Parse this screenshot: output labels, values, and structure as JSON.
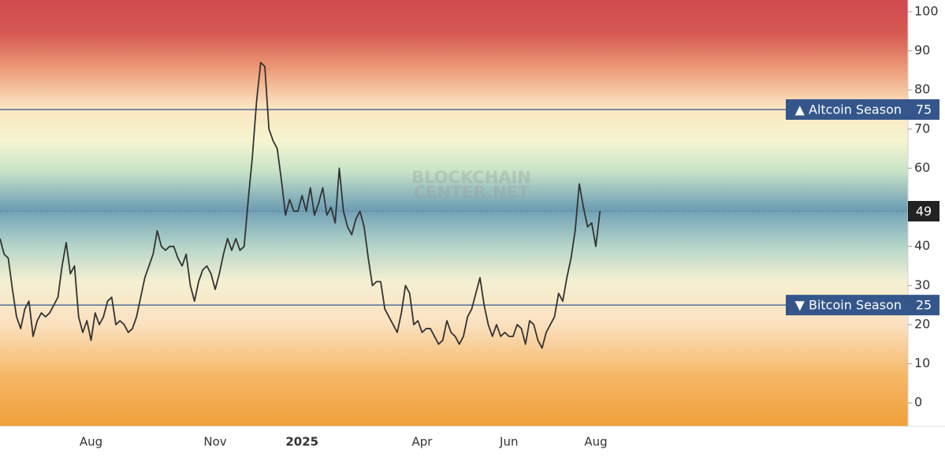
{
  "chart_data": {
    "type": "line",
    "watermark": [
      "BLOCKCHAIN",
      "CENTER.NET"
    ],
    "categories": [
      null,
      null,
      null,
      null,
      null,
      null,
      null,
      null,
      null,
      null,
      null,
      null,
      null,
      null,
      null,
      null,
      null,
      null,
      null,
      null,
      null,
      null,
      "Aug",
      null,
      null,
      null,
      null,
      null,
      null,
      null,
      null,
      null,
      null,
      null,
      null,
      null,
      null,
      null,
      null,
      null,
      null,
      null,
      null,
      null,
      null,
      null,
      null,
      null,
      null,
      null,
      null,
      null,
      "Nov",
      null,
      null,
      null,
      null,
      null,
      null,
      null,
      null,
      null,
      null,
      null,
      null,
      null,
      null,
      null,
      null,
      null,
      null,
      null,
      null,
      "2025",
      null,
      null,
      null,
      null,
      null,
      null,
      null,
      null,
      null,
      null,
      null,
      null,
      null,
      null,
      null,
      null,
      null,
      null,
      null,
      null,
      null,
      null,
      null,
      null,
      null,
      null,
      null,
      null,
      "Apr",
      null,
      null,
      null,
      null,
      null,
      null,
      null,
      null,
      null,
      null,
      null,
      null,
      null,
      null,
      null,
      null,
      null,
      null,
      null,
      null,
      "Jun",
      null,
      null,
      null,
      null,
      null,
      null,
      null,
      null,
      null,
      null,
      null,
      null,
      null,
      null,
      null,
      null,
      null,
      null,
      null,
      null,
      "Aug",
      null
    ],
    "series": [
      {
        "color": "#333333",
        "values": [
          42,
          38,
          37,
          29,
          22,
          19,
          24,
          26,
          17,
          21,
          23,
          22,
          23,
          25,
          27,
          35,
          41,
          33,
          35,
          22,
          18,
          21,
          16,
          23,
          20,
          22,
          26,
          27,
          20,
          21,
          20,
          18,
          19,
          22,
          27,
          32,
          35,
          38,
          44,
          40,
          39,
          40,
          40,
          37,
          35,
          38,
          30,
          26,
          31,
          34,
          35,
          33,
          29,
          33,
          38,
          42,
          39,
          42,
          39,
          40,
          52,
          63,
          77,
          87,
          86,
          70,
          67,
          65,
          57,
          48,
          52,
          49,
          49,
          53,
          49,
          55,
          48,
          51,
          55,
          48,
          50,
          46,
          60,
          49,
          45,
          43,
          47,
          49,
          45,
          37,
          30,
          31,
          31,
          24,
          22,
          20,
          18,
          23,
          30,
          28,
          20,
          21,
          18,
          19,
          19,
          17,
          15,
          16,
          21,
          18,
          17,
          15,
          17,
          22,
          24,
          28,
          32,
          25,
          20,
          17,
          20,
          17,
          18,
          17,
          17,
          20,
          19,
          15,
          21,
          20,
          16,
          14,
          18,
          20,
          22,
          28,
          26,
          32,
          37,
          44,
          56,
          50,
          45,
          46,
          40,
          49
        ]
      }
    ],
    "annotations": [
      {
        "label": "▲ Altcoin Season",
        "value": 75,
        "color": "#34568b"
      },
      {
        "label": "▼ Bitcoin Season",
        "value": 25,
        "color": "#34568b"
      }
    ],
    "ylim": [
      -6,
      103
    ],
    "yticks": [
      0,
      10,
      20,
      30,
      40,
      50,
      60,
      70,
      80,
      90,
      100
    ],
    "grid": false
  }
}
